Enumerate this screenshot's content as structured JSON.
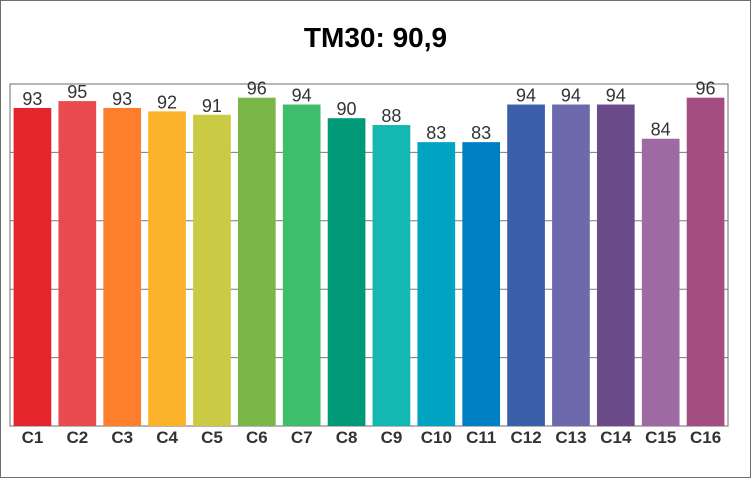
{
  "chart_data": {
    "type": "bar",
    "title": "TM30: 90,9",
    "categories": [
      "C1",
      "C2",
      "C3",
      "C4",
      "C5",
      "C6",
      "C7",
      "C8",
      "C9",
      "C10",
      "C11",
      "C12",
      "C13",
      "C14",
      "C15",
      "C16"
    ],
    "values": [
      93,
      95,
      93,
      92,
      91,
      96,
      94,
      90,
      88,
      83,
      83,
      94,
      94,
      94,
      84,
      96
    ],
    "colors": [
      "#e3262b",
      "#e94a4e",
      "#fd7f2b",
      "#fdb22c",
      "#cbca45",
      "#7ab648",
      "#3ebe6a",
      "#009a78",
      "#13b8b0",
      "#00a4c2",
      "#0080c4",
      "#3b5fa8",
      "#6d69ac",
      "#6b4a89",
      "#9e6aa4",
      "#a44d81"
    ],
    "ylim": [
      0,
      100
    ],
    "grid": true,
    "xlabel": "",
    "ylabel": ""
  }
}
